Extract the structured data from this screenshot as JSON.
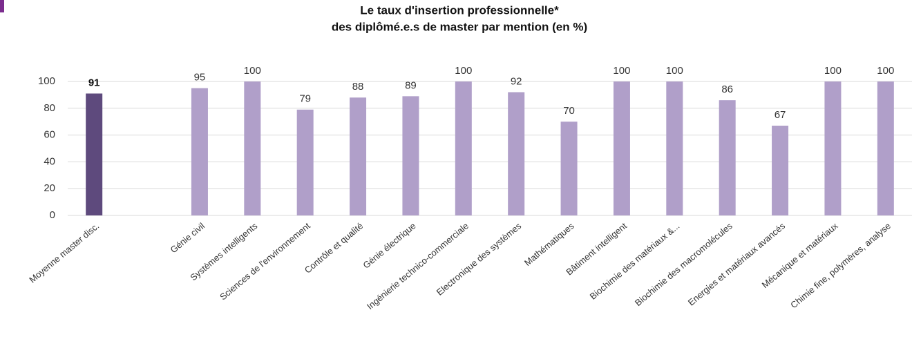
{
  "chart_data": {
    "type": "bar",
    "title": [
      "Le taux d'insertion professionnelle*",
      "des diplômé.e.s  de master par mention (en %)"
    ],
    "categories": [
      "Moyenne master disc.",
      null,
      "Génie civil",
      "Systèmes intelligents",
      "Sciences de l'environnement",
      "Contrôle et qualité",
      "Génie électrique",
      "Ingénierie technico-commerciale",
      "Electronique des systèmes",
      "Mathématiques",
      "Bâtiment intelligent",
      "Biochimie des matériaux &...",
      "Biochimie des macromolécules",
      "Energies et matériaux avancés",
      "Mécanique et matériaux",
      "Chimie fine, polymères, analyse"
    ],
    "values": [
      91,
      null,
      95,
      100,
      79,
      88,
      89,
      100,
      92,
      70,
      100,
      100,
      86,
      67,
      100,
      100
    ],
    "colors": [
      "#5e4a7d",
      null,
      "#b09fc9",
      "#b09fc9",
      "#b09fc9",
      "#b09fc9",
      "#b09fc9",
      "#b09fc9",
      "#b09fc9",
      "#b09fc9",
      "#b09fc9",
      "#b09fc9",
      "#b09fc9",
      "#b09fc9",
      "#b09fc9",
      "#b09fc9"
    ],
    "ylim": [
      0,
      100
    ],
    "yticks": [
      0,
      20,
      40,
      60,
      80,
      100
    ],
    "grid": true
  }
}
